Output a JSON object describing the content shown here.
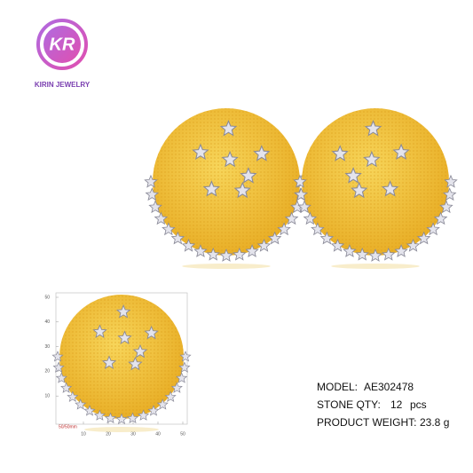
{
  "logo": {
    "mark": "KR",
    "brand": "KIRIN JEWELRY"
  },
  "ruler": {
    "y_labels": [
      "50",
      "40",
      "30",
      "20",
      "10"
    ],
    "x_labels": [
      "10",
      "20",
      "30",
      "40",
      "50"
    ],
    "scale": "50/50mm"
  },
  "specs": [
    {
      "label": "MODEL:",
      "value": "AE302478"
    },
    {
      "label": "STONE QTY:",
      "value": "12",
      "unit": "pcs"
    },
    {
      "label": "PRODUCT WEIGHT:",
      "value": "23.8 g"
    }
  ]
}
